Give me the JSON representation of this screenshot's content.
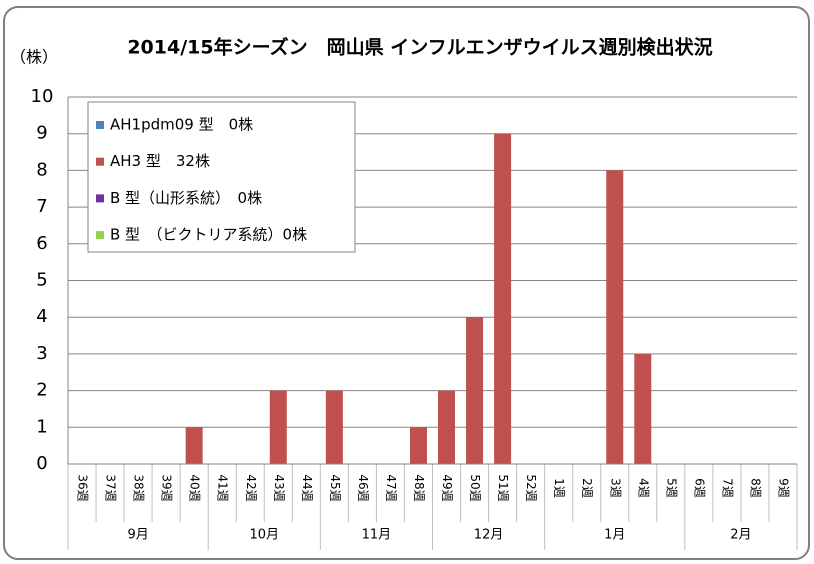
{
  "chart_data": {
    "type": "bar",
    "title": "2014/15年シーズン　岡山県 インフルエンザウイルス週別検出状況",
    "y_label": "（株）",
    "categories": [
      "36週",
      "37週",
      "38週",
      "39週",
      "40週",
      "41週",
      "42週",
      "43週",
      "44週",
      "45週",
      "46週",
      "47週",
      "48週",
      "49週",
      "50週",
      "51週",
      "52週",
      "1週",
      "2週",
      "3週",
      "4週",
      "5週",
      "6週",
      "7週",
      "8週",
      "9週"
    ],
    "category_groups": [
      {
        "label": "9月",
        "count": 5
      },
      {
        "label": "10月",
        "count": 4
      },
      {
        "label": "11月",
        "count": 4
      },
      {
        "label": "12月",
        "count": 4
      },
      {
        "label": "1月",
        "count": 5
      },
      {
        "label": "2月",
        "count": 4
      }
    ],
    "series": [
      {
        "name": "AH1pdm09 型　0株",
        "color": "#4f81bd",
        "values": [
          0,
          0,
          0,
          0,
          0,
          0,
          0,
          0,
          0,
          0,
          0,
          0,
          0,
          0,
          0,
          0,
          0,
          0,
          0,
          0,
          0,
          0,
          0,
          0,
          0,
          0
        ]
      },
      {
        "name": "AH3 型　32株",
        "color": "#c0504d",
        "values": [
          0,
          0,
          0,
          0,
          1,
          0,
          0,
          2,
          0,
          2,
          0,
          0,
          1,
          2,
          4,
          9,
          0,
          0,
          0,
          8,
          3,
          0,
          0,
          0,
          0,
          0
        ]
      },
      {
        "name": "B 型（山形系統）　0株",
        "color": "#7030a0",
        "values": [
          0,
          0,
          0,
          0,
          0,
          0,
          0,
          0,
          0,
          0,
          0,
          0,
          0,
          0,
          0,
          0,
          0,
          0,
          0,
          0,
          0,
          0,
          0,
          0,
          0,
          0
        ]
      },
      {
        "name": "B 型　（ビクトリア系統）0株",
        "color": "#92d050",
        "values": [
          0,
          0,
          0,
          0,
          0,
          0,
          0,
          0,
          0,
          0,
          0,
          0,
          0,
          0,
          0,
          0,
          0,
          0,
          0,
          0,
          0,
          0,
          0,
          0,
          0,
          0
        ]
      }
    ],
    "ylim": [
      0,
      10
    ],
    "yticks": [
      0,
      1,
      2,
      3,
      4,
      5,
      6,
      7,
      8,
      9,
      10
    ],
    "grid": true,
    "legend": "top-left"
  }
}
